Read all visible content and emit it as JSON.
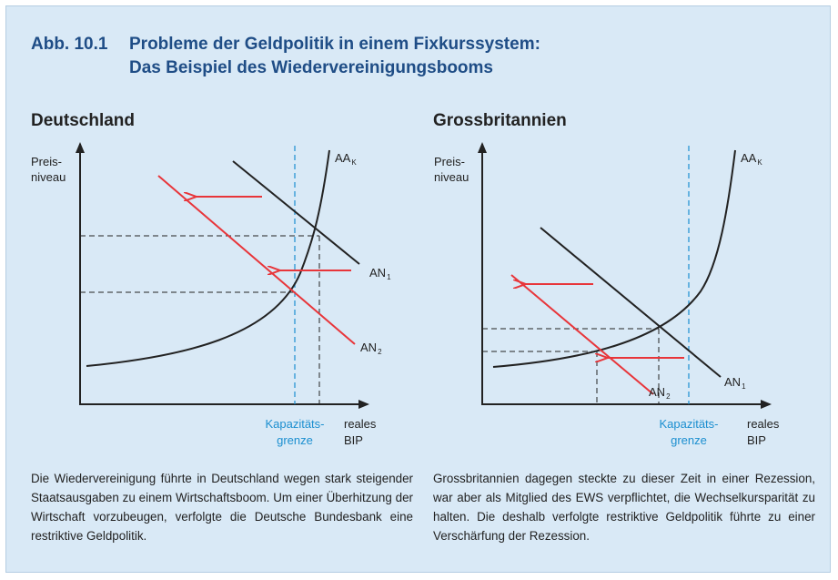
{
  "figure": {
    "number": "Abb. 10.1",
    "title_line1": "Probleme der Geldpolitik in einem Fixkurssystem:",
    "title_line2": "Das Beispiel des Wiedervereinigungsbooms"
  },
  "colors": {
    "background": "#d9e9f6",
    "title": "#1f4d86",
    "shifted_demand": "#e8353a",
    "capacity_line": "#1c8fd0"
  },
  "germany": {
    "heading": "Deutschland",
    "y_axis_line1": "Preis-",
    "y_axis_line2": "niveau",
    "x_axis_line1": "reales",
    "x_axis_line2": "BIP",
    "capacity_line1": "Kapazitäts-",
    "capacity_line2": "grenze",
    "supply_label": "AA",
    "supply_sub": "K",
    "demand1_label": "AN",
    "demand1_sub": "1",
    "demand2_label": "AN",
    "demand2_sub": "2",
    "caption": "Die Wiedervereinigung führte in Deutschland wegen stark steigender Staatsausgaben zu einem Wirtschaftsboom. Um einer Überhitzung der Wirtschaft vorzubeugen, verfolgte die Deutsche Bundesbank eine restriktive Geldpolitik."
  },
  "britain": {
    "heading": "Grossbritannien",
    "y_axis_line1": "Preis-",
    "y_axis_line2": "niveau",
    "x_axis_line1": "reales",
    "x_axis_line2": "BIP",
    "capacity_line1": "Kapazitäts-",
    "capacity_line2": "grenze",
    "supply_label": "AA",
    "supply_sub": "K",
    "demand1_label": "AN",
    "demand1_sub": "1",
    "demand2_label": "AN",
    "demand2_sub": "2",
    "caption": "Grossbritannien dagegen steckte zu dieser Zeit in einer Rezession, war aber als Mitglied des EWS verpflichtet, die Wechselkursparität zu halten. Die deshalb verfolgte restriktive Geldpolitik führte zu einer Verschärfung der Rezession."
  }
}
